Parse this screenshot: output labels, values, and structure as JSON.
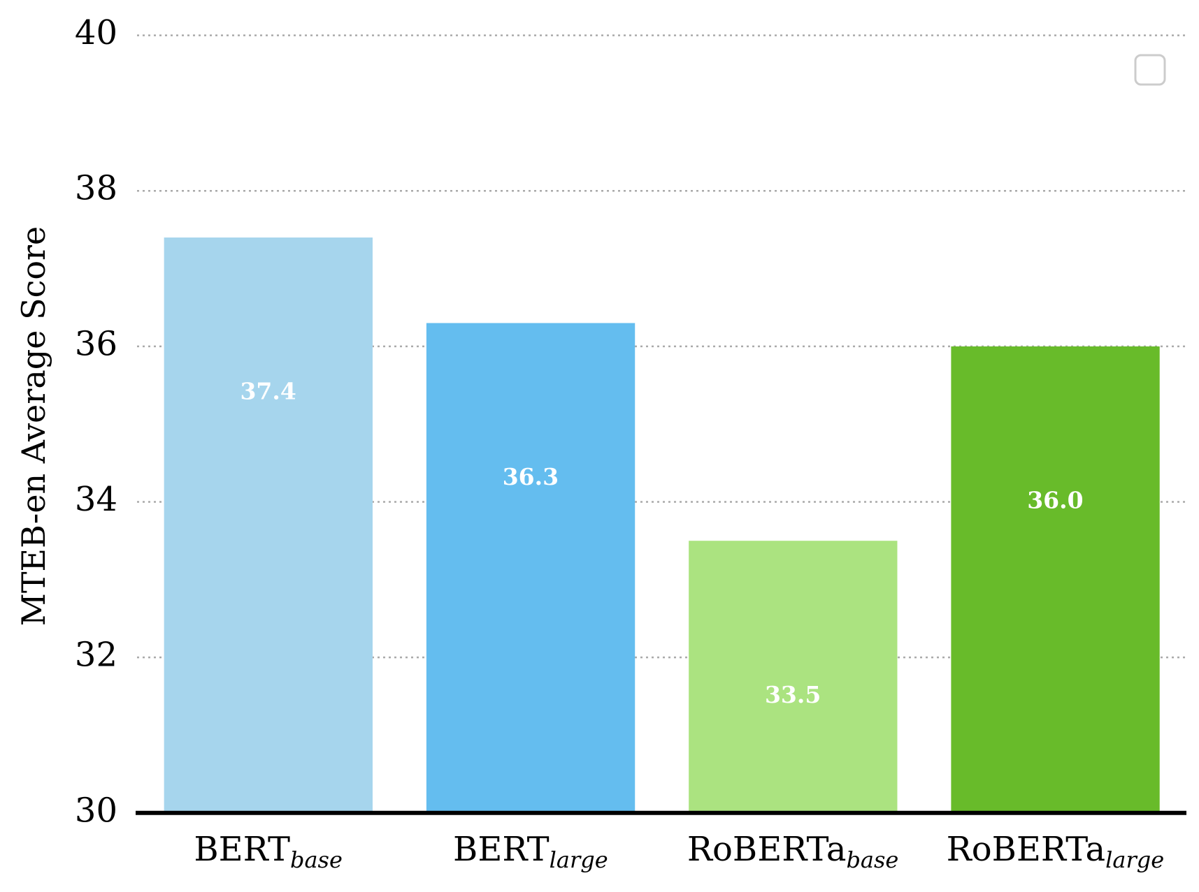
{
  "chart_data": {
    "type": "bar",
    "y_label": "MTEB-en Average Score",
    "categories": [
      {
        "text": "BERT",
        "subscript": "base"
      },
      {
        "text": "BERT",
        "subscript": "large"
      },
      {
        "text": "RoBERTa",
        "subscript": "base"
      },
      {
        "text": "RoBERTa",
        "subscript": "large"
      }
    ],
    "values": [
      37.4,
      36.3,
      33.5,
      36.0
    ],
    "value_labels": [
      "37.4",
      "36.3",
      "33.5",
      "36.0"
    ],
    "colors": [
      "#a6d5ed",
      "#64bdef",
      "#abe380",
      "#68bb2a"
    ],
    "ylim": [
      30,
      40
    ],
    "yticks": [
      30,
      32,
      34,
      36,
      38,
      40
    ],
    "grid": true
  }
}
